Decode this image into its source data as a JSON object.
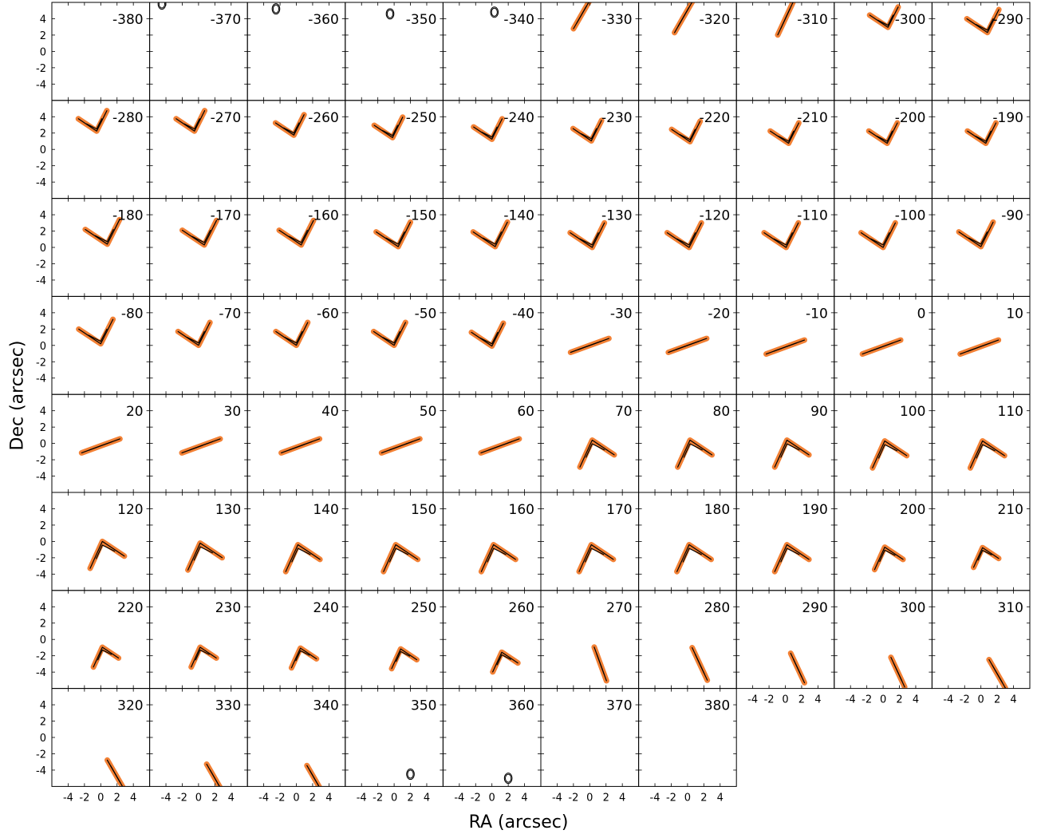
{
  "chart_data": {
    "type": "channel-map",
    "xlabel": "RA (arcsec)",
    "ylabel": "Dec (arcsec)",
    "xlim": [
      -6,
      6
    ],
    "ylim": [
      -6,
      6
    ],
    "x_ticks": [
      "-4",
      "-2",
      "0",
      "2",
      "4"
    ],
    "y_ticks": [
      "4",
      "2",
      "0",
      "-2",
      "-4"
    ],
    "colors": {
      "contour": "#000000",
      "emission": "#f06a10"
    },
    "panels": [
      {
        "label": "-380",
        "shape": "none",
        "cx": 0,
        "cy": 0,
        "pa": 0,
        "arm": 0
      },
      {
        "label": "-370",
        "shape": "blob",
        "cx": -4.5,
        "cy": 5.8,
        "pa": 0,
        "arm": 0
      },
      {
        "label": "-360",
        "shape": "blob",
        "cx": -2.5,
        "cy": 5.2,
        "pa": 0,
        "arm": 0
      },
      {
        "label": "-350",
        "shape": "blob",
        "cx": -0.5,
        "cy": 4.6,
        "pa": 0,
        "arm": 0
      },
      {
        "label": "-340",
        "shape": "blob",
        "cx": 0.3,
        "cy": 4.8,
        "pa": 0,
        "arm": 0
      },
      {
        "label": "-330",
        "shape": "line",
        "cx": -1.0,
        "cy": 4.5,
        "pa": 60,
        "arm": 2
      },
      {
        "label": "-320",
        "shape": "line",
        "cx": -0.5,
        "cy": 4.2,
        "pa": 60,
        "arm": 2.2
      },
      {
        "label": "-310",
        "shape": "line",
        "cx": 0.0,
        "cy": 4.0,
        "pa": 65,
        "arm": 2.2
      },
      {
        "label": "-300",
        "shape": "v",
        "cx": 0.6,
        "cy": 3.2,
        "pa": 0,
        "arm": 2.5
      },
      {
        "label": "-290",
        "shape": "v",
        "cx": 0.8,
        "cy": 2.6,
        "pa": 0,
        "arm": 2.8
      },
      {
        "label": "-280",
        "shape": "v",
        "cx": -0.5,
        "cy": 2.5,
        "pa": 0,
        "arm": 2.5
      },
      {
        "label": "-270",
        "shape": "v",
        "cx": -0.5,
        "cy": 2.5,
        "pa": 0,
        "arm": 2.5
      },
      {
        "label": "-260",
        "shape": "v",
        "cx": -0.3,
        "cy": 2.0,
        "pa": 0,
        "arm": 2.5
      },
      {
        "label": "-250",
        "shape": "v",
        "cx": -0.2,
        "cy": 1.7,
        "pa": 0,
        "arm": 2.5
      },
      {
        "label": "-240",
        "shape": "v",
        "cx": 0.0,
        "cy": 1.5,
        "pa": 0,
        "arm": 2.5
      },
      {
        "label": "-230",
        "shape": "v",
        "cx": 0.2,
        "cy": 1.3,
        "pa": 0,
        "arm": 2.5
      },
      {
        "label": "-220",
        "shape": "v",
        "cx": 0.3,
        "cy": 1.2,
        "pa": 0,
        "arm": 2.5
      },
      {
        "label": "-210",
        "shape": "v",
        "cx": 0.4,
        "cy": 1.0,
        "pa": 0,
        "arm": 2.5
      },
      {
        "label": "-200",
        "shape": "v",
        "cx": 0.5,
        "cy": 1.0,
        "pa": 0,
        "arm": 2.5
      },
      {
        "label": "-190",
        "shape": "v",
        "cx": 0.6,
        "cy": 1.0,
        "pa": 0,
        "arm": 2.5
      },
      {
        "label": "-180",
        "shape": "v",
        "cx": 0.8,
        "cy": 0.7,
        "pa": 0,
        "arm": 3.0
      },
      {
        "label": "-170",
        "shape": "v",
        "cx": 0.7,
        "cy": 0.6,
        "pa": 0,
        "arm": 3.0
      },
      {
        "label": "-160",
        "shape": "v",
        "cx": 0.6,
        "cy": 0.6,
        "pa": 0,
        "arm": 3.0
      },
      {
        "label": "-150",
        "shape": "v",
        "cx": 0.5,
        "cy": 0.4,
        "pa": 0,
        "arm": 3.0
      },
      {
        "label": "-140",
        "shape": "v",
        "cx": 0.4,
        "cy": 0.4,
        "pa": 0,
        "arm": 3.0
      },
      {
        "label": "-130",
        "shape": "v",
        "cx": 0.3,
        "cy": 0.3,
        "pa": 0,
        "arm": 3.0
      },
      {
        "label": "-120",
        "shape": "v",
        "cx": 0.2,
        "cy": 0.3,
        "pa": 0,
        "arm": 3.0
      },
      {
        "label": "-110",
        "shape": "v",
        "cx": 0.1,
        "cy": 0.3,
        "pa": 0,
        "arm": 3.0
      },
      {
        "label": "-100",
        "shape": "v",
        "cx": 0.0,
        "cy": 0.3,
        "pa": 0,
        "arm": 3.0
      },
      {
        "label": "-90",
        "shape": "v",
        "cx": 0.0,
        "cy": 0.4,
        "pa": 0,
        "arm": 3.0
      },
      {
        "label": "-80",
        "shape": "v",
        "cx": 0.0,
        "cy": 0.5,
        "pa": 0,
        "arm": 3.0
      },
      {
        "label": "-70",
        "shape": "v",
        "cx": 0.0,
        "cy": 0.3,
        "pa": 0,
        "arm": 2.8
      },
      {
        "label": "-60",
        "shape": "v",
        "cx": 0.0,
        "cy": 0.3,
        "pa": 0,
        "arm": 2.8
      },
      {
        "label": "-50",
        "shape": "v",
        "cx": 0.0,
        "cy": 0.3,
        "pa": 0,
        "arm": 2.8
      },
      {
        "label": "-40",
        "shape": "v",
        "cx": 0.0,
        "cy": 0.2,
        "pa": 0,
        "arm": 2.8
      },
      {
        "label": "-30",
        "shape": "line",
        "cx": 0.0,
        "cy": 0.0,
        "pa": 20,
        "arm": 2.5
      },
      {
        "label": "-20",
        "shape": "line",
        "cx": 0.0,
        "cy": 0.0,
        "pa": 20,
        "arm": 2.5
      },
      {
        "label": "-10",
        "shape": "line",
        "cx": 0.0,
        "cy": -0.2,
        "pa": 20,
        "arm": 2.5
      },
      {
        "label": "0",
        "shape": "line",
        "cx": -0.2,
        "cy": -0.2,
        "pa": 20,
        "arm": 2.5
      },
      {
        "label": "10",
        "shape": "line",
        "cx": -0.2,
        "cy": -0.2,
        "pa": 20,
        "arm": 2.5
      },
      {
        "label": "20",
        "shape": "line",
        "cx": 0.0,
        "cy": -0.3,
        "pa": 20,
        "arm": 2.5
      },
      {
        "label": "30",
        "shape": "line",
        "cx": 0.3,
        "cy": -0.3,
        "pa": 20,
        "arm": 2.5
      },
      {
        "label": "40",
        "shape": "line",
        "cx": 0.5,
        "cy": -0.3,
        "pa": 20,
        "arm": 2.5
      },
      {
        "label": "50",
        "shape": "line",
        "cx": 0.8,
        "cy": -0.3,
        "pa": 20,
        "arm": 2.5
      },
      {
        "label": "60",
        "shape": "line",
        "cx": 1.0,
        "cy": -0.3,
        "pa": 20,
        "arm": 2.5
      },
      {
        "label": "70",
        "shape": "boomerang",
        "cx": 0.3,
        "cy": -0.2,
        "pa": 0,
        "arm": 3.0
      },
      {
        "label": "80",
        "shape": "boomerang",
        "cx": 0.3,
        "cy": -0.2,
        "pa": 0,
        "arm": 3.0
      },
      {
        "label": "90",
        "shape": "boomerang",
        "cx": 0.2,
        "cy": -0.2,
        "pa": 0,
        "arm": 3.0
      },
      {
        "label": "100",
        "shape": "boomerang",
        "cx": 0.2,
        "cy": -0.3,
        "pa": 0,
        "arm": 3.0
      },
      {
        "label": "110",
        "shape": "boomerang",
        "cx": 0.2,
        "cy": -0.3,
        "pa": 0,
        "arm": 3.0
      },
      {
        "label": "120",
        "shape": "boomerang",
        "cx": 0.2,
        "cy": -0.6,
        "pa": 0,
        "arm": 3.0
      },
      {
        "label": "130",
        "shape": "boomerang",
        "cx": 0.2,
        "cy": -0.8,
        "pa": 0,
        "arm": 3.0
      },
      {
        "label": "140",
        "shape": "boomerang",
        "cx": 0.2,
        "cy": -1.0,
        "pa": 0,
        "arm": 3.0
      },
      {
        "label": "150",
        "shape": "boomerang",
        "cx": 0.2,
        "cy": -1.0,
        "pa": 0,
        "arm": 3.0
      },
      {
        "label": "160",
        "shape": "boomerang",
        "cx": 0.2,
        "cy": -1.0,
        "pa": 0,
        "arm": 3.0
      },
      {
        "label": "170",
        "shape": "boomerang",
        "cx": 0.2,
        "cy": -1.0,
        "pa": 0,
        "arm": 3.0
      },
      {
        "label": "180",
        "shape": "boomerang",
        "cx": 0.2,
        "cy": -1.0,
        "pa": 0,
        "arm": 3.0
      },
      {
        "label": "190",
        "shape": "boomerang",
        "cx": 0.2,
        "cy": -1.0,
        "pa": 0,
        "arm": 3.0
      },
      {
        "label": "200",
        "shape": "boomerang",
        "cx": 0.2,
        "cy": -1.2,
        "pa": 0,
        "arm": 2.5
      },
      {
        "label": "210",
        "shape": "boomerang",
        "cx": 0.2,
        "cy": -1.2,
        "pa": 0,
        "arm": 2.2
      },
      {
        "label": "220",
        "shape": "boomerang",
        "cx": 0.2,
        "cy": -1.4,
        "pa": 0,
        "arm": 2.2
      },
      {
        "label": "230",
        "shape": "boomerang",
        "cx": 0.2,
        "cy": -1.4,
        "pa": 0,
        "arm": 2.2
      },
      {
        "label": "240",
        "shape": "boomerang",
        "cx": 0.5,
        "cy": -1.5,
        "pa": 0,
        "arm": 2.2
      },
      {
        "label": "250",
        "shape": "boomerang",
        "cx": 0.8,
        "cy": -1.6,
        "pa": 0,
        "arm": 2.2
      },
      {
        "label": "260",
        "shape": "boomerang",
        "cx": 1.2,
        "cy": -2.0,
        "pa": 0,
        "arm": 2.2
      },
      {
        "label": "270",
        "shape": "line",
        "cx": 1.3,
        "cy": -3.0,
        "pa": -70,
        "arm": 2.2
      },
      {
        "label": "280",
        "shape": "line",
        "cx": 1.5,
        "cy": -3.0,
        "pa": -65,
        "arm": 2.2
      },
      {
        "label": "290",
        "shape": "line",
        "cx": 1.5,
        "cy": -3.5,
        "pa": -65,
        "arm": 2.0
      },
      {
        "label": "300",
        "shape": "line",
        "cx": 1.8,
        "cy": -4.0,
        "pa": -65,
        "arm": 2.0
      },
      {
        "label": "310",
        "shape": "line",
        "cx": 2.0,
        "cy": -4.2,
        "pa": -60,
        "arm": 2.0
      },
      {
        "label": "320",
        "shape": "line",
        "cx": 1.8,
        "cy": -4.5,
        "pa": -60,
        "arm": 2.0
      },
      {
        "label": "330",
        "shape": "line",
        "cx": 2.0,
        "cy": -5.0,
        "pa": -60,
        "arm": 2.0
      },
      {
        "label": "340",
        "shape": "line",
        "cx": 2.2,
        "cy": -5.0,
        "pa": -60,
        "arm": 1.8
      },
      {
        "label": "350",
        "shape": "blob",
        "cx": 2.0,
        "cy": -4.5,
        "pa": 0,
        "arm": 0
      },
      {
        "label": "360",
        "shape": "blob",
        "cx": 2.0,
        "cy": -5.0,
        "pa": 0,
        "arm": 0
      },
      {
        "label": "370",
        "shape": "none",
        "cx": 0,
        "cy": 0,
        "pa": 0,
        "arm": 0
      },
      {
        "label": "380",
        "shape": "none",
        "cx": 0,
        "cy": 0,
        "pa": 0,
        "arm": 0
      }
    ]
  }
}
